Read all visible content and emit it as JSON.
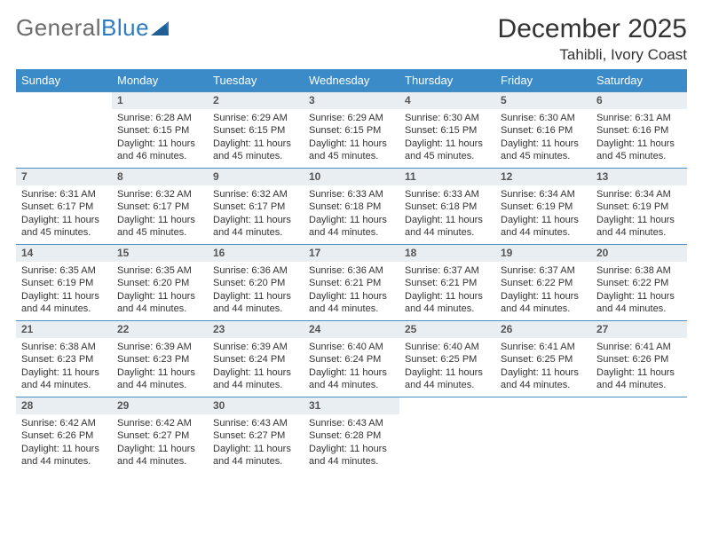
{
  "brand": {
    "part1": "General",
    "part2": "Blue"
  },
  "title": "December 2025",
  "location": "Tahibli, Ivory Coast",
  "colors": {
    "header_bg": "#3b8bc9",
    "header_text": "#ffffff",
    "daybar_bg": "#e9eef2",
    "row_border": "#4a8ec2",
    "text": "#333333",
    "logo_gray": "#6b6b6b",
    "logo_blue": "#2f7bbf"
  },
  "day_headers": [
    "Sunday",
    "Monday",
    "Tuesday",
    "Wednesday",
    "Thursday",
    "Friday",
    "Saturday"
  ],
  "weeks": [
    [
      {
        "n": "",
        "sunrise": "",
        "sunset": "",
        "daylight": ""
      },
      {
        "n": "1",
        "sunrise": "Sunrise: 6:28 AM",
        "sunset": "Sunset: 6:15 PM",
        "daylight": "Daylight: 11 hours and 46 minutes."
      },
      {
        "n": "2",
        "sunrise": "Sunrise: 6:29 AM",
        "sunset": "Sunset: 6:15 PM",
        "daylight": "Daylight: 11 hours and 45 minutes."
      },
      {
        "n": "3",
        "sunrise": "Sunrise: 6:29 AM",
        "sunset": "Sunset: 6:15 PM",
        "daylight": "Daylight: 11 hours and 45 minutes."
      },
      {
        "n": "4",
        "sunrise": "Sunrise: 6:30 AM",
        "sunset": "Sunset: 6:15 PM",
        "daylight": "Daylight: 11 hours and 45 minutes."
      },
      {
        "n": "5",
        "sunrise": "Sunrise: 6:30 AM",
        "sunset": "Sunset: 6:16 PM",
        "daylight": "Daylight: 11 hours and 45 minutes."
      },
      {
        "n": "6",
        "sunrise": "Sunrise: 6:31 AM",
        "sunset": "Sunset: 6:16 PM",
        "daylight": "Daylight: 11 hours and 45 minutes."
      }
    ],
    [
      {
        "n": "7",
        "sunrise": "Sunrise: 6:31 AM",
        "sunset": "Sunset: 6:17 PM",
        "daylight": "Daylight: 11 hours and 45 minutes."
      },
      {
        "n": "8",
        "sunrise": "Sunrise: 6:32 AM",
        "sunset": "Sunset: 6:17 PM",
        "daylight": "Daylight: 11 hours and 45 minutes."
      },
      {
        "n": "9",
        "sunrise": "Sunrise: 6:32 AM",
        "sunset": "Sunset: 6:17 PM",
        "daylight": "Daylight: 11 hours and 44 minutes."
      },
      {
        "n": "10",
        "sunrise": "Sunrise: 6:33 AM",
        "sunset": "Sunset: 6:18 PM",
        "daylight": "Daylight: 11 hours and 44 minutes."
      },
      {
        "n": "11",
        "sunrise": "Sunrise: 6:33 AM",
        "sunset": "Sunset: 6:18 PM",
        "daylight": "Daylight: 11 hours and 44 minutes."
      },
      {
        "n": "12",
        "sunrise": "Sunrise: 6:34 AM",
        "sunset": "Sunset: 6:19 PM",
        "daylight": "Daylight: 11 hours and 44 minutes."
      },
      {
        "n": "13",
        "sunrise": "Sunrise: 6:34 AM",
        "sunset": "Sunset: 6:19 PM",
        "daylight": "Daylight: 11 hours and 44 minutes."
      }
    ],
    [
      {
        "n": "14",
        "sunrise": "Sunrise: 6:35 AM",
        "sunset": "Sunset: 6:19 PM",
        "daylight": "Daylight: 11 hours and 44 minutes."
      },
      {
        "n": "15",
        "sunrise": "Sunrise: 6:35 AM",
        "sunset": "Sunset: 6:20 PM",
        "daylight": "Daylight: 11 hours and 44 minutes."
      },
      {
        "n": "16",
        "sunrise": "Sunrise: 6:36 AM",
        "sunset": "Sunset: 6:20 PM",
        "daylight": "Daylight: 11 hours and 44 minutes."
      },
      {
        "n": "17",
        "sunrise": "Sunrise: 6:36 AM",
        "sunset": "Sunset: 6:21 PM",
        "daylight": "Daylight: 11 hours and 44 minutes."
      },
      {
        "n": "18",
        "sunrise": "Sunrise: 6:37 AM",
        "sunset": "Sunset: 6:21 PM",
        "daylight": "Daylight: 11 hours and 44 minutes."
      },
      {
        "n": "19",
        "sunrise": "Sunrise: 6:37 AM",
        "sunset": "Sunset: 6:22 PM",
        "daylight": "Daylight: 11 hours and 44 minutes."
      },
      {
        "n": "20",
        "sunrise": "Sunrise: 6:38 AM",
        "sunset": "Sunset: 6:22 PM",
        "daylight": "Daylight: 11 hours and 44 minutes."
      }
    ],
    [
      {
        "n": "21",
        "sunrise": "Sunrise: 6:38 AM",
        "sunset": "Sunset: 6:23 PM",
        "daylight": "Daylight: 11 hours and 44 minutes."
      },
      {
        "n": "22",
        "sunrise": "Sunrise: 6:39 AM",
        "sunset": "Sunset: 6:23 PM",
        "daylight": "Daylight: 11 hours and 44 minutes."
      },
      {
        "n": "23",
        "sunrise": "Sunrise: 6:39 AM",
        "sunset": "Sunset: 6:24 PM",
        "daylight": "Daylight: 11 hours and 44 minutes."
      },
      {
        "n": "24",
        "sunrise": "Sunrise: 6:40 AM",
        "sunset": "Sunset: 6:24 PM",
        "daylight": "Daylight: 11 hours and 44 minutes."
      },
      {
        "n": "25",
        "sunrise": "Sunrise: 6:40 AM",
        "sunset": "Sunset: 6:25 PM",
        "daylight": "Daylight: 11 hours and 44 minutes."
      },
      {
        "n": "26",
        "sunrise": "Sunrise: 6:41 AM",
        "sunset": "Sunset: 6:25 PM",
        "daylight": "Daylight: 11 hours and 44 minutes."
      },
      {
        "n": "27",
        "sunrise": "Sunrise: 6:41 AM",
        "sunset": "Sunset: 6:26 PM",
        "daylight": "Daylight: 11 hours and 44 minutes."
      }
    ],
    [
      {
        "n": "28",
        "sunrise": "Sunrise: 6:42 AM",
        "sunset": "Sunset: 6:26 PM",
        "daylight": "Daylight: 11 hours and 44 minutes."
      },
      {
        "n": "29",
        "sunrise": "Sunrise: 6:42 AM",
        "sunset": "Sunset: 6:27 PM",
        "daylight": "Daylight: 11 hours and 44 minutes."
      },
      {
        "n": "30",
        "sunrise": "Sunrise: 6:43 AM",
        "sunset": "Sunset: 6:27 PM",
        "daylight": "Daylight: 11 hours and 44 minutes."
      },
      {
        "n": "31",
        "sunrise": "Sunrise: 6:43 AM",
        "sunset": "Sunset: 6:28 PM",
        "daylight": "Daylight: 11 hours and 44 minutes."
      },
      {
        "n": "",
        "sunrise": "",
        "sunset": "",
        "daylight": ""
      },
      {
        "n": "",
        "sunrise": "",
        "sunset": "",
        "daylight": ""
      },
      {
        "n": "",
        "sunrise": "",
        "sunset": "",
        "daylight": ""
      }
    ]
  ]
}
